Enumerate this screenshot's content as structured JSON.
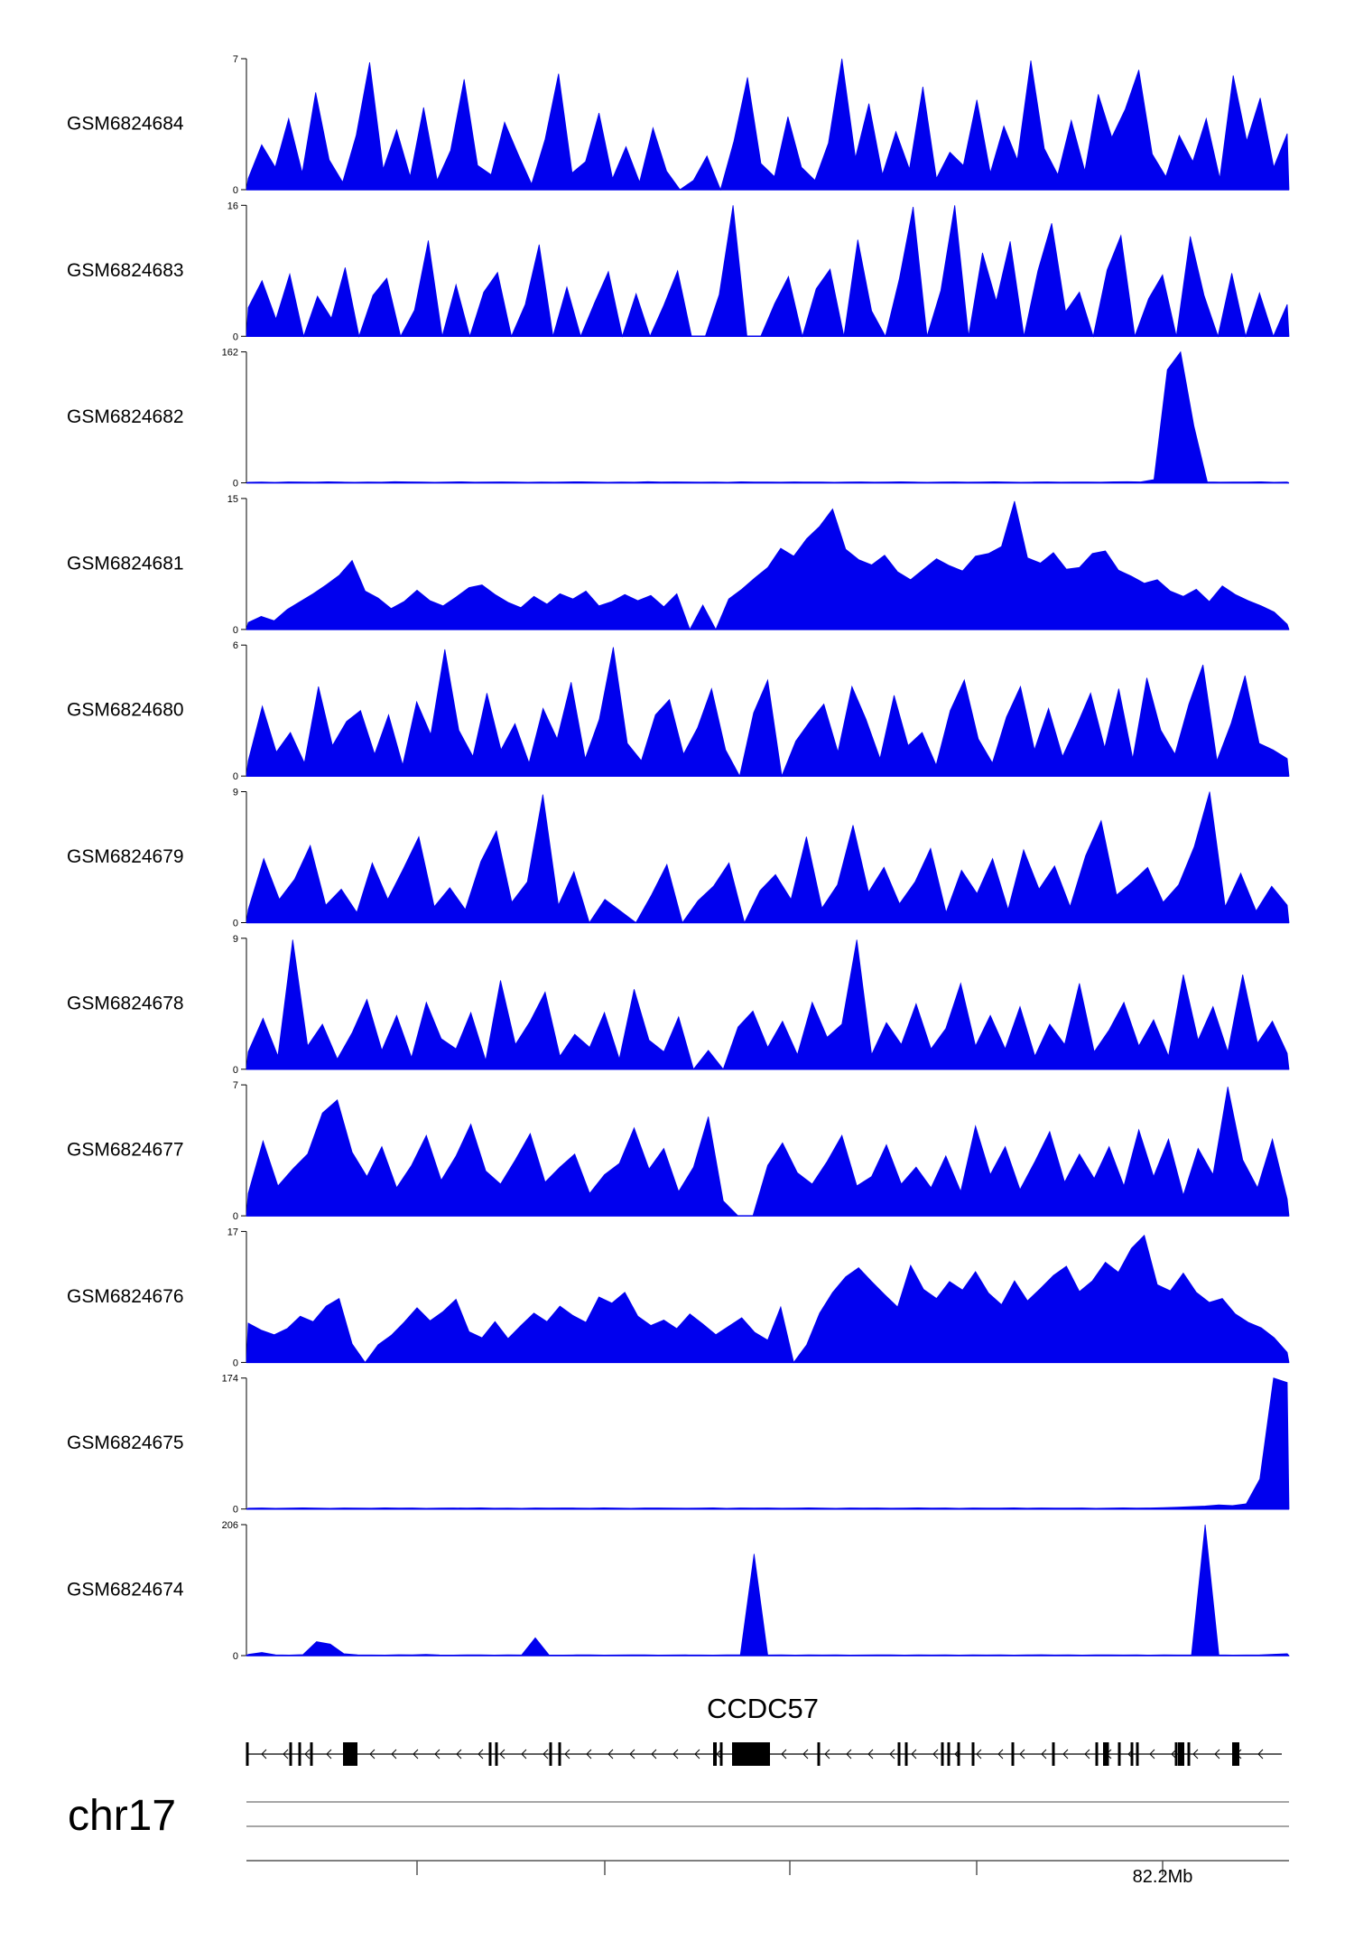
{
  "chart_data": {
    "type": "area",
    "colors": {
      "signal": "#0000ee",
      "axis": "#000000"
    },
    "x_axis_label": "82.2Mb",
    "chromosome": "chr17",
    "gene": {
      "name": "CCDC57",
      "strand": "-"
    },
    "tracks": [
      {
        "name": "GSM6824684",
        "ymax": 7,
        "ymin": 0,
        "values": [
          0.6,
          2.4,
          1.2,
          3.8,
          0.9,
          5.2,
          1.6,
          0.4,
          2.9,
          6.8,
          1.1,
          3.2,
          0.7,
          4.4,
          0.5,
          2.1,
          5.9,
          1.3,
          0.8,
          3.6,
          1.9,
          0.3,
          2.7,
          6.2,
          0.9,
          1.5,
          4.1,
          0.6,
          2.3,
          0.4,
          3.3,
          1.0,
          0.0,
          0.5,
          1.8,
          0.0,
          2.6,
          6.0,
          1.4,
          0.7,
          3.9,
          1.2,
          0.5,
          2.5,
          7.0,
          1.7,
          4.6,
          0.8,
          3.1,
          1.1,
          5.5,
          0.6,
          2.0,
          1.3,
          4.8,
          0.9,
          3.4,
          1.6,
          6.9,
          2.2,
          0.8,
          3.7,
          1.0,
          5.1,
          2.8,
          4.3,
          6.4,
          1.9,
          0.7,
          2.9,
          1.5,
          3.8,
          0.6,
          6.1,
          2.6,
          4.9,
          1.2,
          3.0
        ]
      },
      {
        "name": "GSM6824683",
        "ymax": 16,
        "ymin": 0,
        "values": [
          3.5,
          6.8,
          2.1,
          7.6,
          0.0,
          4.9,
          2.2,
          8.4,
          0.0,
          5.0,
          7.1,
          0.0,
          3.2,
          11.7,
          0.0,
          6.3,
          0.0,
          5.4,
          7.8,
          0.0,
          3.9,
          11.2,
          0.0,
          6.0,
          0.0,
          4.1,
          7.9,
          0.0,
          5.2,
          0.0,
          3.8,
          8.0,
          0.0,
          0.0,
          5.1,
          16.0,
          0.0,
          0.0,
          4.0,
          7.3,
          0.0,
          5.8,
          8.2,
          0.0,
          11.8,
          3.1,
          0.0,
          7.0,
          15.8,
          0.0,
          5.6,
          16.0,
          0.0,
          10.2,
          4.3,
          11.6,
          0.0,
          8.0,
          13.8,
          3.0,
          5.4,
          0.0,
          8.1,
          12.3,
          0.0,
          4.6,
          7.5,
          0.0,
          12.2,
          5.0,
          0.0,
          7.7,
          0.0,
          5.3,
          0.0,
          3.9
        ]
      },
      {
        "name": "GSM6824682",
        "ymax": 162,
        "ymin": 0,
        "values": [
          0.8,
          1.0,
          0.7,
          1.2,
          1.1,
          0.9,
          1.3,
          1.0,
          0.8,
          1.1,
          0.9,
          1.4,
          1.2,
          1.0,
          0.8,
          1.1,
          1.3,
          0.9,
          1.0,
          1.2,
          1.1,
          0.8,
          1.0,
          0.9,
          1.2,
          1.3,
          1.0,
          0.8,
          1.1,
          0.9,
          1.4,
          1.0,
          1.2,
          1.1,
          0.9,
          1.0,
          0.8,
          1.3,
          1.1,
          1.0,
          0.9,
          1.2,
          1.0,
          1.1,
          0.8,
          1.0,
          1.2,
          0.9,
          1.1,
          1.3,
          1.0,
          0.8,
          1.1,
          1.2,
          0.9,
          1.0,
          1.3,
          1.1,
          0.8,
          1.0,
          1.2,
          0.9,
          1.1,
          1.0,
          0.9,
          1.3,
          1.4,
          1.2,
          4.0,
          140.0,
          162.0,
          70.0,
          1.2,
          0.9,
          1.0,
          1.1,
          1.3,
          0.8,
          1.0
        ]
      },
      {
        "name": "GSM6824681",
        "ymax": 15,
        "ymin": 0,
        "values": [
          0.8,
          1.5,
          1.0,
          2.3,
          3.2,
          4.1,
          5.1,
          6.2,
          7.9,
          4.4,
          3.6,
          2.4,
          3.2,
          4.5,
          3.3,
          2.7,
          3.7,
          4.8,
          5.1,
          4.0,
          3.1,
          2.5,
          3.8,
          2.9,
          4.1,
          3.5,
          4.4,
          2.7,
          3.2,
          4.0,
          3.3,
          3.9,
          2.6,
          4.1,
          0.0,
          2.8,
          0.0,
          3.5,
          4.6,
          5.9,
          7.1,
          9.3,
          8.4,
          10.4,
          11.8,
          13.8,
          9.2,
          8.0,
          7.4,
          8.5,
          6.6,
          5.7,
          6.9,
          8.1,
          7.3,
          6.7,
          8.4,
          8.7,
          9.5,
          14.7,
          8.2,
          7.6,
          8.8,
          6.9,
          7.1,
          8.7,
          9.0,
          6.8,
          6.1,
          5.3,
          5.7,
          4.4,
          3.8,
          4.6,
          3.2,
          5.0,
          4.0,
          3.3,
          2.7,
          2.0,
          0.6
        ]
      },
      {
        "name": "GSM6824680",
        "ymax": 6,
        "ymin": 0,
        "values": [
          0.7,
          3.2,
          1.1,
          2.0,
          0.6,
          4.1,
          1.4,
          2.5,
          3.0,
          1.0,
          2.8,
          0.5,
          3.4,
          1.9,
          5.8,
          2.1,
          0.9,
          3.8,
          1.2,
          2.4,
          0.6,
          3.1,
          1.7,
          4.3,
          0.8,
          2.6,
          5.9,
          1.5,
          0.7,
          2.8,
          3.5,
          1.0,
          2.2,
          4.0,
          1.2,
          0.0,
          2.9,
          4.4,
          0.0,
          1.6,
          2.5,
          3.3,
          1.1,
          4.1,
          2.6,
          0.8,
          3.7,
          1.4,
          2.0,
          0.5,
          3.0,
          4.4,
          1.7,
          0.6,
          2.7,
          4.1,
          1.2,
          3.1,
          0.9,
          2.3,
          3.8,
          1.3,
          4.0,
          0.8,
          4.5,
          2.1,
          1.0,
          3.3,
          5.1,
          0.7,
          2.4,
          4.6,
          1.5,
          1.2,
          0.8
        ]
      },
      {
        "name": "GSM6824679",
        "ymax": 9,
        "ymin": 0,
        "values": [
          0.9,
          4.4,
          1.6,
          3.0,
          5.3,
          1.2,
          2.3,
          0.7,
          4.1,
          1.6,
          3.7,
          5.9,
          1.1,
          2.4,
          0.9,
          4.2,
          6.3,
          1.4,
          2.8,
          8.8,
          1.2,
          3.5,
          0.0,
          1.6,
          0.8,
          0.0,
          1.9,
          4.0,
          0.0,
          1.5,
          2.5,
          4.1,
          0.0,
          2.2,
          3.3,
          1.6,
          5.9,
          1.0,
          2.6,
          6.7,
          2.1,
          3.8,
          1.3,
          2.8,
          5.1,
          0.7,
          3.6,
          2.0,
          4.4,
          0.9,
          5.0,
          2.3,
          3.9,
          1.1,
          4.6,
          7.0,
          1.9,
          2.8,
          3.8,
          1.4,
          2.6,
          5.2,
          9.0,
          1.1,
          3.4,
          0.8,
          2.5,
          1.2
        ]
      },
      {
        "name": "GSM6824678",
        "ymax": 9,
        "ymin": 0,
        "values": [
          1.2,
          3.5,
          0.9,
          8.9,
          1.6,
          3.1,
          0.7,
          2.5,
          4.8,
          1.3,
          3.7,
          0.8,
          4.6,
          2.1,
          1.4,
          3.9,
          0.6,
          6.1,
          1.7,
          3.3,
          5.3,
          0.9,
          2.4,
          1.5,
          3.9,
          0.7,
          5.5,
          2.0,
          1.2,
          3.6,
          0.0,
          1.3,
          0.0,
          2.9,
          4.0,
          1.5,
          3.3,
          1.0,
          4.6,
          2.2,
          3.1,
          8.9,
          1.0,
          3.2,
          1.7,
          4.5,
          1.4,
          2.8,
          5.9,
          1.6,
          3.7,
          1.4,
          4.3,
          0.9,
          3.1,
          1.7,
          5.9,
          1.2,
          2.7,
          4.6,
          1.6,
          3.4,
          0.9,
          6.5,
          2.0,
          4.3,
          1.2,
          6.5,
          1.8,
          3.3,
          1.1
        ]
      },
      {
        "name": "GSM6824677",
        "ymax": 7,
        "ymin": 0,
        "values": [
          1.2,
          4.0,
          1.6,
          2.5,
          3.3,
          5.5,
          6.2,
          3.4,
          2.1,
          3.7,
          1.5,
          2.7,
          4.3,
          1.9,
          3.2,
          4.9,
          2.4,
          1.7,
          3.0,
          4.4,
          1.8,
          2.6,
          3.3,
          1.2,
          2.2,
          2.8,
          4.7,
          2.5,
          3.6,
          1.3,
          2.6,
          5.3,
          0.8,
          0.0,
          0.0,
          2.7,
          3.9,
          2.3,
          1.7,
          2.9,
          4.3,
          1.6,
          2.1,
          3.8,
          1.7,
          2.6,
          1.5,
          3.2,
          1.3,
          4.8,
          2.2,
          3.7,
          1.4,
          2.9,
          4.5,
          1.8,
          3.3,
          2.0,
          3.7,
          1.6,
          4.6,
          2.1,
          4.1,
          1.1,
          3.6,
          2.2,
          6.9,
          3.0,
          1.5,
          4.1,
          0.9
        ]
      },
      {
        "name": "GSM6824676",
        "ymax": 17,
        "ymin": 0,
        "values": [
          5.1,
          4.2,
          3.6,
          4.4,
          6.0,
          5.3,
          7.3,
          8.3,
          2.4,
          0.0,
          2.3,
          3.5,
          5.2,
          7.1,
          5.4,
          6.6,
          8.2,
          4.0,
          3.2,
          5.3,
          3.1,
          4.8,
          6.4,
          5.3,
          7.3,
          6.1,
          5.2,
          8.5,
          7.7,
          9.1,
          6.0,
          4.8,
          5.5,
          4.4,
          6.3,
          5.0,
          3.6,
          4.7,
          5.8,
          3.9,
          2.9,
          7.2,
          0.0,
          2.3,
          6.4,
          9.1,
          11.1,
          12.3,
          10.5,
          8.8,
          7.2,
          12.6,
          9.5,
          8.3,
          10.5,
          9.4,
          11.8,
          9.0,
          7.5,
          10.6,
          8.0,
          9.6,
          11.3,
          12.5,
          9.2,
          10.6,
          13.0,
          11.7,
          14.8,
          16.5,
          10.1,
          9.3,
          11.6,
          9.1,
          7.8,
          8.3,
          6.3,
          5.2,
          4.5,
          3.2,
          1.3
        ]
      },
      {
        "name": "GSM6824675",
        "ymax": 174,
        "ymin": 0,
        "values": [
          1.1,
          1.5,
          1.0,
          1.3,
          1.6,
          1.2,
          1.0,
          1.4,
          1.3,
          1.1,
          1.6,
          1.2,
          1.5,
          1.0,
          1.3,
          1.4,
          1.2,
          1.6,
          1.1,
          1.3,
          1.0,
          1.5,
          1.2,
          1.4,
          1.3,
          1.1,
          1.6,
          1.2,
          1.0,
          1.4,
          1.5,
          1.3,
          1.1,
          1.2,
          1.6,
          1.0,
          1.4,
          1.3,
          1.5,
          1.1,
          1.2,
          1.6,
          1.3,
          1.0,
          1.4,
          1.2,
          1.5,
          1.1,
          1.3,
          1.6,
          1.2,
          1.4,
          1.0,
          1.5,
          1.3,
          1.2,
          1.6,
          1.1,
          1.4,
          1.3,
          1.2,
          1.5,
          1.0,
          1.3,
          1.6,
          1.2,
          1.4,
          1.8,
          2.4,
          3.2,
          4.0,
          5.5,
          4.6,
          7.0,
          40.0,
          174.0,
          168.0
        ]
      },
      {
        "name": "GSM6824674",
        "ymax": 206,
        "ymin": 0,
        "values": [
          2.0,
          5.0,
          1.2,
          0.8,
          1.5,
          22.0,
          18.0,
          3.0,
          1.2,
          1.0,
          0.8,
          1.4,
          1.1,
          2.0,
          1.0,
          0.9,
          1.3,
          1.1,
          0.8,
          1.2,
          1.0,
          28.0,
          1.0,
          0.9,
          1.2,
          1.1,
          0.8,
          1.0,
          1.3,
          1.1,
          0.9,
          1.0,
          1.2,
          1.0,
          0.8,
          1.1,
          1.3,
          160.0,
          1.0,
          1.2,
          0.9,
          1.1,
          1.0,
          1.2,
          0.8,
          1.0,
          1.3,
          1.1,
          0.9,
          1.2,
          1.0,
          1.1,
          0.9,
          1.3,
          1.0,
          1.2,
          0.8,
          1.1,
          1.4,
          1.0,
          1.2,
          0.9,
          1.3,
          1.1,
          1.0,
          1.2,
          0.9,
          1.1,
          1.0,
          1.3,
          206.0,
          1.2,
          0.9,
          1.0,
          1.1,
          2.2,
          3.0
        ]
      }
    ]
  }
}
